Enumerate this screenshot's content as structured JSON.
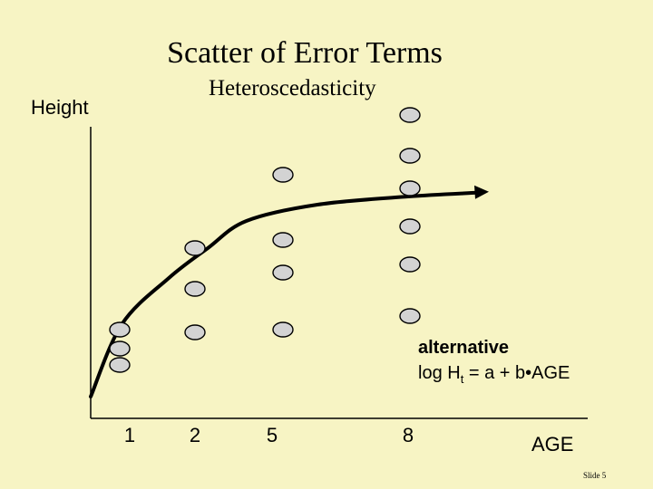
{
  "slide": {
    "title": "Scatter of Error Terms",
    "subtitle": "Heteroscedasticity",
    "number": "Slide 5"
  },
  "annotation": {
    "line1": "alternative",
    "line2_pre": "log H",
    "line2_sub": "t",
    "line2_post": " = a + b•AGE"
  },
  "colors": {
    "background": "#f7f4c4",
    "point_fill": "#d3d3d3",
    "ink": "#000000"
  },
  "chart_data": {
    "type": "scatter",
    "title": "Scatter of Error Terms",
    "xlabel": "AGE",
    "ylabel": "Height",
    "categories": [
      "1",
      "2",
      "5",
      "8"
    ],
    "grid": false,
    "series": [
      {
        "points": [
          {
            "x": "1",
            "y": 1.1
          },
          {
            "x": "1",
            "y": 0.75
          },
          {
            "x": "1",
            "y": 0.45
          },
          {
            "x": "2",
            "y": 2.6
          },
          {
            "x": "2",
            "y": 1.85
          },
          {
            "x": "2",
            "y": 1.05
          },
          {
            "x": "5",
            "y": 3.95
          },
          {
            "x": "5",
            "y": 2.75
          },
          {
            "x": "5",
            "y": 2.15
          },
          {
            "x": "5",
            "y": 1.1
          },
          {
            "x": "8",
            "y": 4.3
          },
          {
            "x": "8",
            "y": 3.7
          },
          {
            "x": "8",
            "y": 3.0
          },
          {
            "x": "8",
            "y": 2.3
          },
          {
            "x": "8",
            "y": 1.35
          },
          {
            "x": "8",
            "y": 5.05
          }
        ]
      }
    ],
    "curve": {
      "description_shown": "logarithmic fit with arrowhead",
      "points": [
        {
          "x": 0,
          "y": 0
        },
        {
          "x": 0.8,
          "y": 1.2
        },
        {
          "x": 1.6,
          "y": 2.05
        },
        {
          "x": 2.5,
          "y": 2.6
        },
        {
          "x": 4,
          "y": 3.1
        },
        {
          "x": 6,
          "y": 3.4
        },
        {
          "x": 8,
          "y": 3.55
        },
        {
          "x": 9,
          "y": 3.62
        }
      ]
    }
  }
}
